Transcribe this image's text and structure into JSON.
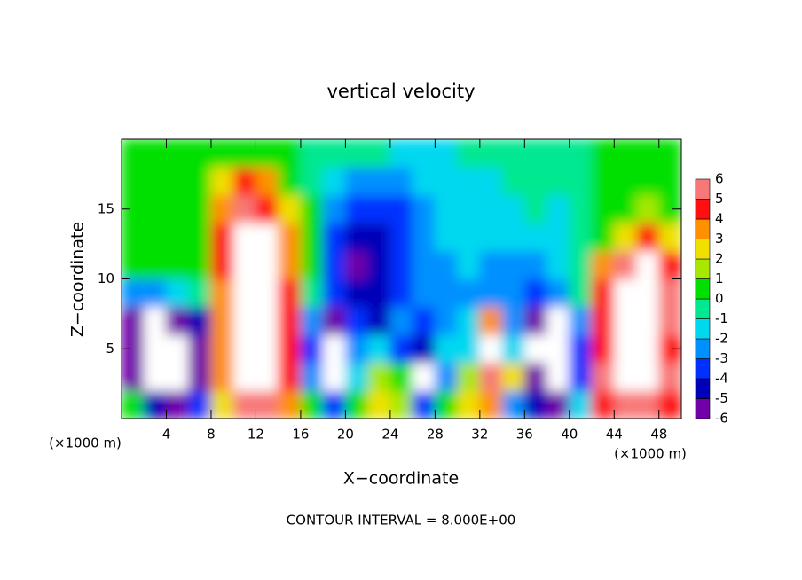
{
  "chart_data": {
    "type": "contour",
    "title": "vertical velocity",
    "x_label": "X−coordinate",
    "y_label": "Z−coordinate",
    "x_unit": "(×1000 m)",
    "y_unit": "(×1000 m)",
    "footer": "CONTOUR INTERVAL = 8.000E+00",
    "xlim": [
      0,
      50
    ],
    "ylim": [
      0,
      20
    ],
    "xticks": [
      4,
      8,
      12,
      16,
      20,
      24,
      28,
      32,
      36,
      40,
      44,
      48
    ],
    "yticks": [
      5,
      10,
      15
    ],
    "x": [
      1,
      3,
      5,
      7,
      9,
      11,
      13,
      15,
      17,
      19,
      21,
      23,
      25,
      27,
      29,
      31,
      33,
      35,
      37,
      39,
      41,
      43,
      45,
      47,
      49
    ],
    "y": [
      1,
      3,
      5,
      7,
      9,
      11,
      13,
      15,
      17,
      19
    ],
    "z": [
      [
        0.5,
        -4,
        -5,
        -3,
        3,
        6,
        6,
        4,
        1,
        -3,
        1,
        3,
        2,
        -3,
        1,
        3,
        4,
        -2,
        -4,
        -5,
        -1,
        5,
        6,
        6,
        5
      ],
      [
        -5,
        -8,
        -8,
        -5,
        4,
        8,
        8,
        5,
        -2,
        -7,
        -1,
        2,
        1,
        -7,
        -2,
        2,
        6,
        3,
        -6,
        -8,
        -3,
        6,
        9,
        9,
        6
      ],
      [
        -6,
        -8,
        -8,
        -5,
        4,
        8,
        9,
        5,
        -3,
        -8,
        -2,
        -1,
        -3,
        -4,
        -1,
        -1,
        8,
        -1,
        -7,
        -8,
        -3,
        5,
        9,
        9,
        5
      ],
      [
        -5,
        -7,
        -6,
        -4,
        4,
        8,
        8,
        5,
        -2,
        -6,
        -3,
        -4,
        -2,
        -3,
        -2,
        -1,
        4,
        -2,
        -5,
        -7,
        -2,
        5,
        8,
        8,
        6
      ],
      [
        -2,
        -2,
        -1.5,
        0,
        4,
        8,
        8,
        5,
        0,
        -3,
        -4.5,
        -4,
        -3,
        -2.5,
        -2,
        -2,
        -2,
        -2.5,
        -3,
        -2,
        0,
        5,
        8,
        8,
        6
      ],
      [
        1,
        0.5,
        0.5,
        1,
        5,
        8,
        7,
        4,
        0.5,
        -3,
        -5,
        -4.5,
        -3.5,
        -2.5,
        -2,
        -1.5,
        -2,
        -2,
        -2,
        -1.5,
        0,
        4,
        6,
        7,
        5
      ],
      [
        0.5,
        0.5,
        0.5,
        1,
        5,
        7,
        7,
        4,
        0.5,
        -3,
        -4.5,
        -4,
        -3,
        -2,
        -1.5,
        -1.5,
        -1.5,
        -1,
        -1.5,
        -1,
        0,
        1,
        3,
        5,
        3
      ],
      [
        0.5,
        0.5,
        1,
        0.5,
        4,
        6,
        5,
        3,
        0.5,
        -2,
        -3,
        -3.5,
        -3,
        -2,
        -1.5,
        -1.5,
        -1,
        -1,
        -0.5,
        -1,
        0,
        1,
        1,
        2,
        1
      ],
      [
        0.5,
        0.5,
        0.5,
        0.5,
        3,
        5,
        4,
        1,
        0,
        -1,
        -2,
        -2.5,
        -2,
        -1.5,
        -1,
        -1,
        -1,
        -0.5,
        0,
        -0.5,
        0,
        0.5,
        0.5,
        0.5,
        0.5
      ],
      [
        0.5,
        0.5,
        0.5,
        0.5,
        1,
        0.5,
        0.5,
        0.5,
        0,
        0,
        0,
        -0.5,
        -1,
        -1,
        -1,
        -0.5,
        -0.5,
        0,
        0,
        0,
        0,
        0.5,
        0.5,
        0.5,
        0.5
      ]
    ],
    "levels": [
      -6,
      -5,
      -4,
      -3,
      -2,
      -1,
      0,
      1,
      2,
      3,
      4,
      5,
      6
    ],
    "colors": [
      "#7000a8",
      "#0000b8",
      "#0030ff",
      "#0090ff",
      "#00d8f0",
      "#00e890",
      "#00e000",
      "#a8e800",
      "#f0e000",
      "#ff9000",
      "#ff1010",
      "#f87878"
    ],
    "out_of_range_color": "#ffffff"
  }
}
